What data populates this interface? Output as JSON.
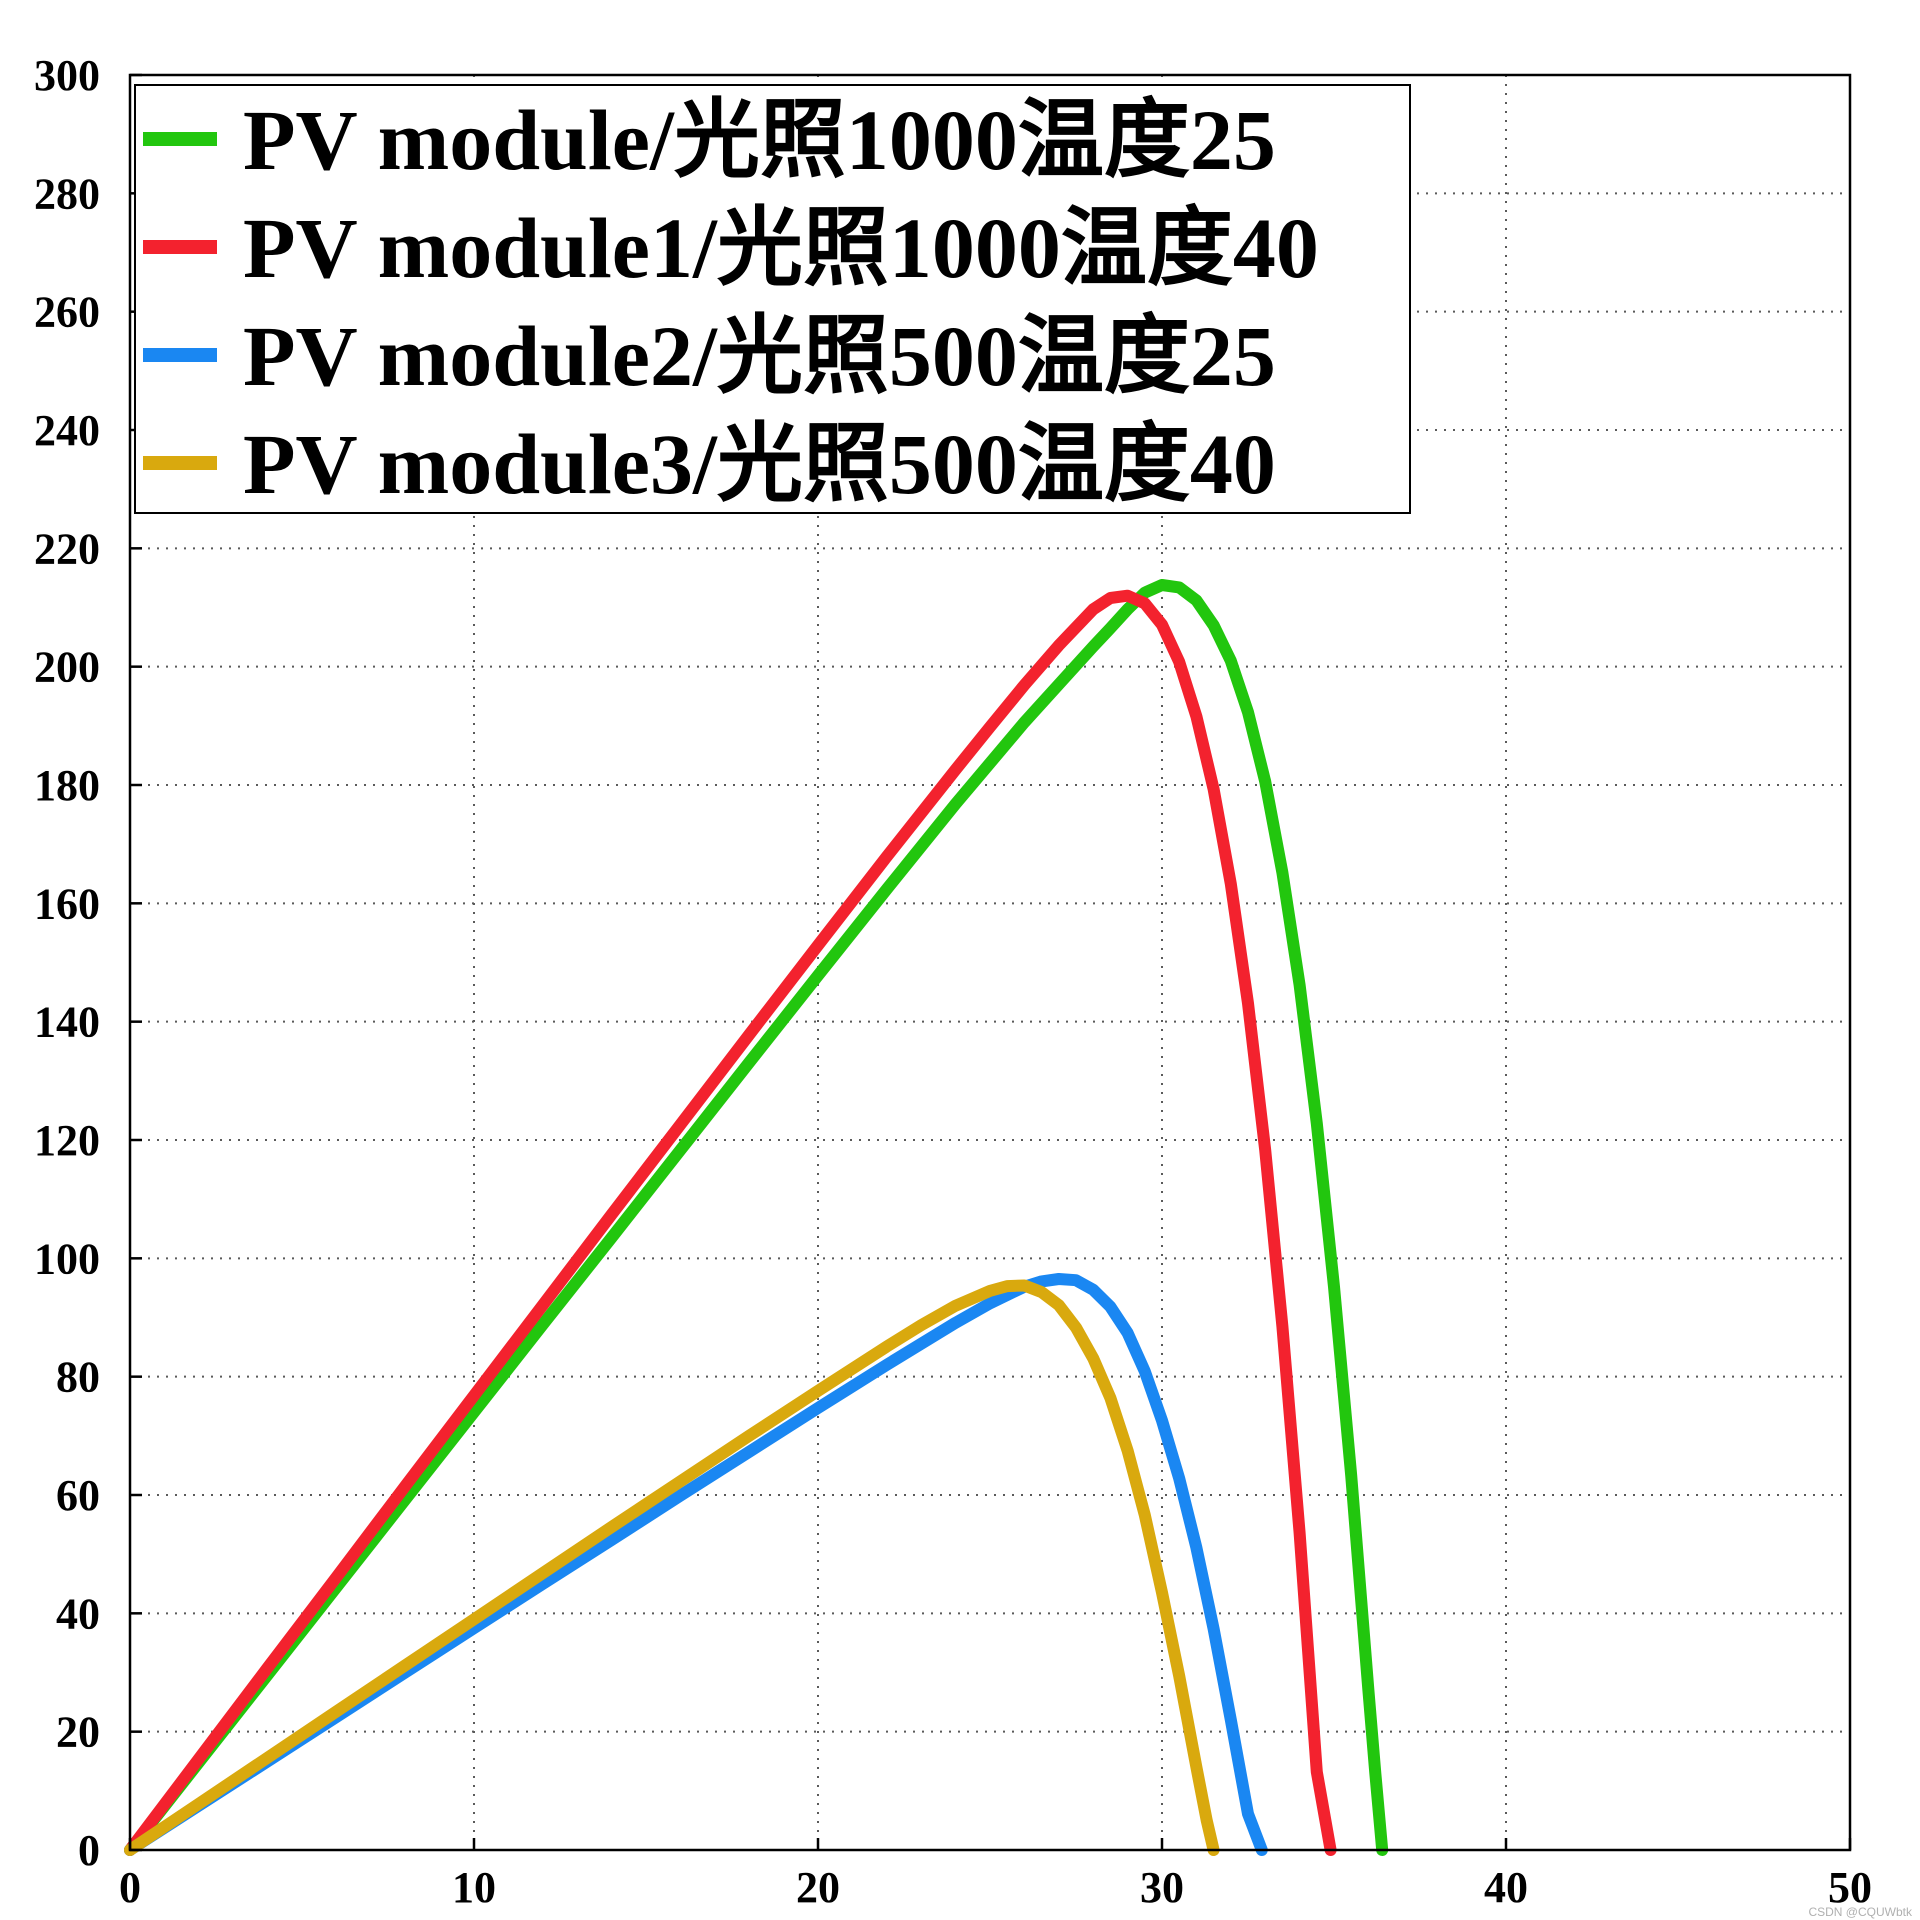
{
  "chart_data": {
    "type": "line",
    "title": "",
    "xlabel": "",
    "ylabel": "",
    "xlim": [
      0,
      50
    ],
    "ylim": [
      0,
      300
    ],
    "x_ticks": [
      0,
      10,
      20,
      30,
      40,
      50
    ],
    "y_ticks": [
      0,
      20,
      40,
      60,
      80,
      100,
      120,
      140,
      160,
      180,
      200,
      220,
      240,
      260,
      280,
      300
    ],
    "grid": true,
    "legend_position": "top-left",
    "series": [
      {
        "name": "PV module/光照1000温度25",
        "color": "#22c60e",
        "x": [
          0,
          2,
          4,
          6,
          8,
          10,
          12,
          14,
          16,
          18,
          20,
          22,
          24,
          26,
          27,
          28,
          28.5,
          29,
          29.5,
          30,
          30.5,
          31,
          31.5,
          32,
          32.5,
          33,
          33.5,
          34,
          34.5,
          35,
          35.5,
          36,
          36.2,
          36.4
        ],
        "y": [
          0,
          14.8,
          29.6,
          44.4,
          59.2,
          74.0,
          88.8,
          103.5,
          118.3,
          133.1,
          147.8,
          162.4,
          176.8,
          190.6,
          197.0,
          203.4,
          206.5,
          209.7,
          212.5,
          213.8,
          213.4,
          211.2,
          207.0,
          201.0,
          192.3,
          180.6,
          165.2,
          146.2,
          122.8,
          95.2,
          63.3,
          27.0,
          13.0,
          0
        ]
      },
      {
        "name": "PV module1/光照1000温度40",
        "color": "#f3222e",
        "x": [
          0,
          2,
          4,
          6,
          8,
          10,
          12,
          14,
          16,
          18,
          20,
          22,
          24,
          25,
          26,
          27,
          28,
          28.5,
          29,
          29.5,
          30,
          30.5,
          31,
          31.5,
          32,
          32.5,
          33,
          33.5,
          34,
          34.5,
          34.9
        ],
        "y": [
          0,
          15.4,
          30.8,
          46.1,
          61.5,
          76.8,
          92.1,
          107.4,
          122.6,
          137.8,
          152.9,
          167.9,
          182.6,
          189.8,
          196.9,
          203.6,
          209.7,
          211.6,
          212.0,
          210.7,
          207.1,
          200.8,
          191.6,
          179.3,
          163.3,
          143.1,
          118.3,
          88.5,
          53.6,
          13.2,
          0
        ]
      },
      {
        "name": "PV module2/光照500温度25",
        "color": "#1a87f2",
        "x": [
          0,
          2,
          4,
          6,
          8,
          10,
          12,
          14,
          16,
          18,
          20,
          22,
          24,
          25,
          26,
          26.5,
          27,
          27.5,
          28,
          28.5,
          29,
          29.5,
          30,
          30.5,
          31,
          31.5,
          32,
          32.5,
          32.9
        ],
        "y": [
          0,
          7.5,
          15.0,
          22.5,
          30.0,
          37.5,
          45.0,
          52.4,
          59.9,
          67.3,
          74.7,
          82.0,
          89.1,
          92.4,
          95.2,
          96.1,
          96.5,
          96.3,
          94.7,
          91.8,
          87.4,
          80.9,
          72.6,
          62.8,
          51.1,
          37.4,
          22.0,
          6.1,
          0
        ]
      },
      {
        "name": "PV module3/光照500温度40",
        "color": "#d9a90e",
        "x": [
          0,
          2,
          4,
          6,
          8,
          10,
          12,
          14,
          16,
          18,
          20,
          22,
          23,
          24,
          25,
          25.5,
          26,
          26.5,
          27,
          27.5,
          28,
          28.5,
          29,
          29.5,
          30,
          30.5,
          31,
          31.3,
          31.5
        ],
        "y": [
          0,
          7.8,
          15.6,
          23.4,
          31.2,
          39.0,
          46.8,
          54.6,
          62.3,
          70.0,
          77.6,
          85.1,
          88.7,
          92.0,
          94.5,
          95.3,
          95.4,
          94.3,
          92.1,
          88.3,
          83.1,
          76.4,
          67.5,
          56.6,
          43.5,
          29.4,
          14.0,
          5.0,
          0
        ]
      }
    ]
  },
  "watermark": "CSDN @CQUWbtk"
}
